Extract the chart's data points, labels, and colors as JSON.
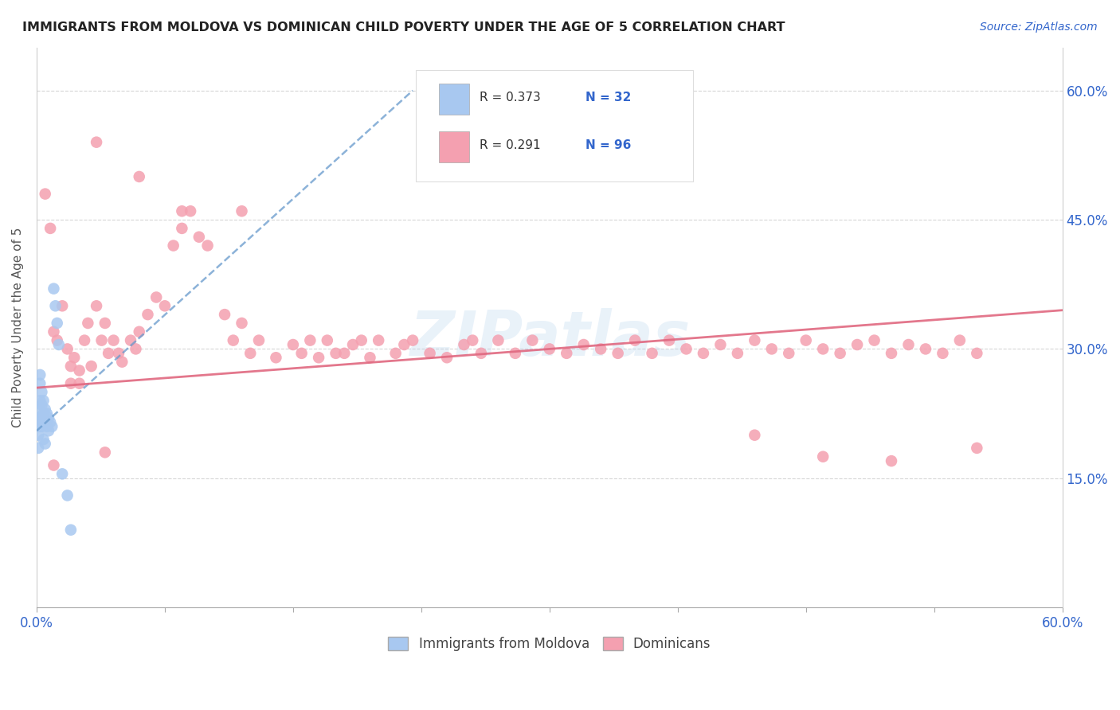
{
  "title": "IMMIGRANTS FROM MOLDOVA VS DOMINICAN CHILD POVERTY UNDER THE AGE OF 5 CORRELATION CHART",
  "source": "Source: ZipAtlas.com",
  "ylabel": "Child Poverty Under the Age of 5",
  "legend_r1": "R = 0.373",
  "legend_n1": "N = 32",
  "legend_r2": "R = 0.291",
  "legend_n2": "N = 96",
  "legend_label1": "Immigrants from Moldova",
  "legend_label2": "Dominicans",
  "watermark": "ZIPatlas",
  "blue_color": "#a8c8f0",
  "pink_color": "#f4a0b0",
  "blue_line_color": "#6699cc",
  "pink_line_color": "#e06880",
  "axis_label_color": "#3366cc",
  "title_color": "#222222",
  "background_color": "#ffffff",
  "grid_color": "#cccccc",
  "xlim": [
    0.0,
    0.6
  ],
  "ylim": [
    0.0,
    0.65
  ],
  "blue_scatter_x": [
    0.001,
    0.001,
    0.001,
    0.002,
    0.002,
    0.002,
    0.002,
    0.002,
    0.003,
    0.003,
    0.003,
    0.003,
    0.004,
    0.004,
    0.004,
    0.004,
    0.005,
    0.005,
    0.005,
    0.006,
    0.006,
    0.007,
    0.007,
    0.008,
    0.009,
    0.01,
    0.011,
    0.012,
    0.013,
    0.015,
    0.018,
    0.02
  ],
  "blue_scatter_y": [
    0.22,
    0.2,
    0.185,
    0.27,
    0.26,
    0.24,
    0.23,
    0.21,
    0.25,
    0.235,
    0.22,
    0.21,
    0.24,
    0.225,
    0.215,
    0.195,
    0.23,
    0.215,
    0.19,
    0.225,
    0.21,
    0.22,
    0.205,
    0.215,
    0.21,
    0.37,
    0.35,
    0.33,
    0.305,
    0.155,
    0.13,
    0.09
  ],
  "pink_scatter_x": [
    0.005,
    0.008,
    0.01,
    0.012,
    0.015,
    0.018,
    0.02,
    0.022,
    0.025,
    0.028,
    0.03,
    0.032,
    0.035,
    0.038,
    0.04,
    0.042,
    0.045,
    0.048,
    0.05,
    0.055,
    0.058,
    0.06,
    0.065,
    0.07,
    0.075,
    0.08,
    0.085,
    0.09,
    0.095,
    0.1,
    0.11,
    0.115,
    0.12,
    0.125,
    0.13,
    0.14,
    0.15,
    0.155,
    0.16,
    0.165,
    0.17,
    0.175,
    0.18,
    0.185,
    0.19,
    0.195,
    0.2,
    0.21,
    0.215,
    0.22,
    0.23,
    0.24,
    0.25,
    0.255,
    0.26,
    0.27,
    0.28,
    0.29,
    0.3,
    0.31,
    0.32,
    0.33,
    0.34,
    0.35,
    0.36,
    0.37,
    0.38,
    0.39,
    0.4,
    0.41,
    0.42,
    0.43,
    0.44,
    0.45,
    0.46,
    0.47,
    0.48,
    0.49,
    0.5,
    0.51,
    0.52,
    0.53,
    0.54,
    0.55,
    0.42,
    0.46,
    0.5,
    0.55,
    0.035,
    0.06,
    0.085,
    0.12,
    0.02,
    0.04,
    0.01,
    0.025
  ],
  "pink_scatter_y": [
    0.48,
    0.44,
    0.32,
    0.31,
    0.35,
    0.3,
    0.28,
    0.29,
    0.275,
    0.31,
    0.33,
    0.28,
    0.35,
    0.31,
    0.33,
    0.295,
    0.31,
    0.295,
    0.285,
    0.31,
    0.3,
    0.32,
    0.34,
    0.36,
    0.35,
    0.42,
    0.44,
    0.46,
    0.43,
    0.42,
    0.34,
    0.31,
    0.33,
    0.295,
    0.31,
    0.29,
    0.305,
    0.295,
    0.31,
    0.29,
    0.31,
    0.295,
    0.295,
    0.305,
    0.31,
    0.29,
    0.31,
    0.295,
    0.305,
    0.31,
    0.295,
    0.29,
    0.305,
    0.31,
    0.295,
    0.31,
    0.295,
    0.31,
    0.3,
    0.295,
    0.305,
    0.3,
    0.295,
    0.31,
    0.295,
    0.31,
    0.3,
    0.295,
    0.305,
    0.295,
    0.31,
    0.3,
    0.295,
    0.31,
    0.3,
    0.295,
    0.305,
    0.31,
    0.295,
    0.305,
    0.3,
    0.295,
    0.31,
    0.295,
    0.2,
    0.175,
    0.17,
    0.185,
    0.54,
    0.5,
    0.46,
    0.46,
    0.26,
    0.18,
    0.165,
    0.26
  ],
  "blue_trend_x": [
    0.0,
    0.22
  ],
  "blue_trend_y": [
    0.205,
    0.6
  ],
  "pink_trend_x": [
    0.0,
    0.6
  ],
  "pink_trend_y": [
    0.255,
    0.345
  ]
}
